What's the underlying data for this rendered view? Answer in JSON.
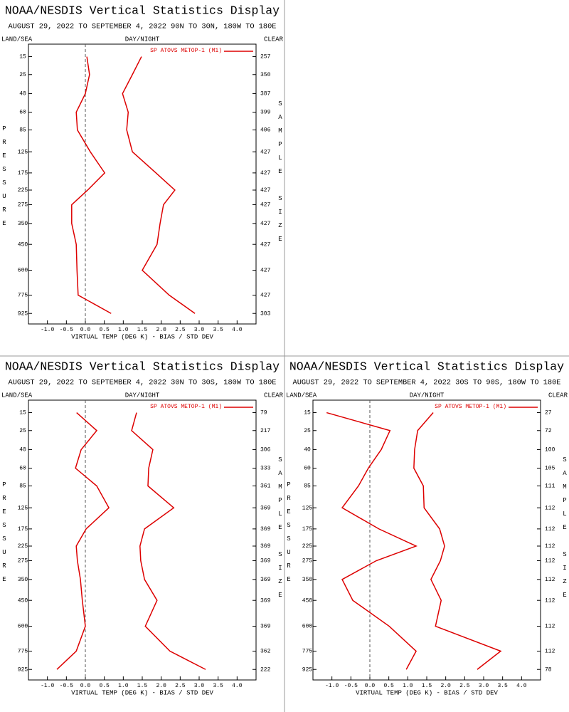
{
  "chart_data": [
    {
      "type": "line",
      "title": "NOAA/NESDIS Vertical Statistics Display",
      "subtitle": "AUGUST 29, 2022 TO SEPTEMBER 4, 2022 90N TO 30N, 180W TO 180E",
      "left_label": "LAND/SEA",
      "center_label": "DAY/NIGHT",
      "right_label": "CLEAR",
      "ylabel": "PRESSURE",
      "y2label": "SAMPLE SIZE",
      "xlabel": "VIRTUAL TEMP (DEG K) - BIAS / STD DEV",
      "y": [
        15,
        25,
        40,
        60,
        85,
        125,
        175,
        225,
        275,
        350,
        450,
        600,
        775,
        925
      ],
      "sample_sizes": [
        257,
        350,
        387,
        399,
        406,
        427,
        427,
        427,
        427,
        427,
        427,
        427,
        427,
        303
      ],
      "series": [
        {
          "name": "SP ATOVS METOP-1 (M1)",
          "color": "#dd0000",
          "values": [
            0.04,
            0.11,
            0.0,
            -0.24,
            -0.21,
            0.13,
            0.51,
            0.06,
            -0.36,
            -0.36,
            -0.24,
            -0.22,
            -0.19,
            0.68
          ]
        },
        {
          "color": "#dd0000",
          "values": [
            1.48,
            1.24,
            0.98,
            1.13,
            1.09,
            1.24,
            1.86,
            2.36,
            2.06,
            1.97,
            1.89,
            1.5,
            2.21,
            2.89
          ]
        }
      ],
      "xlim": [
        -1.5,
        4.5
      ],
      "xticks": [
        {
          "value": -1,
          "label": "-1.0"
        },
        -0.5,
        {
          "value": 0,
          "label": "0.0"
        },
        0.5,
        {
          "value": 1,
          "label": "1.0"
        },
        1.5,
        {
          "value": 2,
          "label": "2.0"
        },
        2.5,
        {
          "value": 3,
          "label": "3.0"
        },
        3.5,
        {
          "value": 4,
          "label": "4.0"
        }
      ],
      "ylim": [
        10,
        1020
      ],
      "y_scale": {
        "type": "power",
        "exponent": 0.286
      },
      "y_inverted": true,
      "zero_line": true
    },
    {
      "type": "line",
      "title": "NOAA/NESDIS Vertical Statistics Display",
      "subtitle": "AUGUST 29, 2022 TO SEPTEMBER 4, 2022 30N TO 30S, 180W TO 180E",
      "left_label": "LAND/SEA",
      "center_label": "DAY/NIGHT",
      "right_label": "CLEAR",
      "ylabel": "PRESSURE",
      "y2label": "SAMPLE SIZE",
      "xlabel": "VIRTUAL TEMP (DEG K) - BIAS / STD DEV",
      "y": [
        15,
        25,
        40,
        60,
        85,
        125,
        175,
        225,
        275,
        350,
        450,
        600,
        775,
        925
      ],
      "sample_sizes": [
        79,
        217,
        306,
        333,
        361,
        369,
        369,
        369,
        369,
        369,
        369,
        369,
        362,
        222
      ],
      "series": [
        {
          "name": "SP ATOVS METOP-1 (M1)",
          "color": "#dd0000",
          "values": [
            -0.23,
            0.3,
            -0.11,
            -0.26,
            0.3,
            0.62,
            0.02,
            -0.24,
            -0.21,
            -0.13,
            -0.08,
            0.0,
            -0.24,
            -0.75
          ]
        },
        {
          "color": "#dd0000",
          "values": [
            1.35,
            1.22,
            1.78,
            1.67,
            1.65,
            2.33,
            1.56,
            1.44,
            1.46,
            1.56,
            1.89,
            1.58,
            2.23,
            3.17
          ]
        }
      ],
      "xlim": [
        -1.5,
        4.5
      ],
      "xticks": [
        {
          "value": -1,
          "label": "-1.0"
        },
        -0.5,
        {
          "value": 0,
          "label": "0.0"
        },
        0.5,
        {
          "value": 1,
          "label": "1.0"
        },
        1.5,
        {
          "value": 2,
          "label": "2.0"
        },
        2.5,
        {
          "value": 3,
          "label": "3.0"
        },
        3.5,
        {
          "value": 4,
          "label": "4.0"
        }
      ],
      "ylim": [
        10,
        1020
      ],
      "y_scale": {
        "type": "power",
        "exponent": 0.286
      },
      "y_inverted": true,
      "zero_line": true
    },
    {
      "type": "line",
      "title": "NOAA/NESDIS Vertical Statistics Display",
      "subtitle": "AUGUST 29, 2022 TO SEPTEMBER 4, 2022 30S TO 90S, 180W TO 180E",
      "left_label": "LAND/SEA",
      "center_label": "DAY/NIGHT",
      "right_label": "CLEAR",
      "ylabel": "PRESSURE",
      "y2label": "SAMPLE SIZE",
      "xlabel": "VIRTUAL TEMP (DEG K) - BIAS / STD DEV",
      "y": [
        15,
        25,
        40,
        60,
        85,
        125,
        175,
        225,
        275,
        350,
        450,
        600,
        775,
        925
      ],
      "sample_sizes": [
        27,
        72,
        100,
        105,
        111,
        112,
        112,
        112,
        112,
        112,
        112,
        112,
        112,
        78
      ],
      "series": [
        {
          "name": "SP ATOVS METOP-1 (M1)",
          "color": "#dd0000",
          "values": [
            -1.14,
            0.53,
            0.3,
            -0.04,
            -0.3,
            -0.73,
            0.24,
            1.22,
            0.17,
            -0.73,
            -0.45,
            0.51,
            1.22,
            0.96
          ]
        },
        {
          "color": "#dd0000",
          "values": [
            1.67,
            1.26,
            1.18,
            1.16,
            1.41,
            1.43,
            1.84,
            1.97,
            1.86,
            1.61,
            1.88,
            1.73,
            3.45,
            2.83
          ]
        }
      ],
      "xlim": [
        -1.5,
        4.5
      ],
      "xticks": [
        {
          "value": -1,
          "label": "-1.0"
        },
        -0.5,
        {
          "value": 0,
          "label": "0.0"
        },
        0.5,
        {
          "value": 1,
          "label": "1.0"
        },
        1.5,
        {
          "value": 2,
          "label": "2.0"
        },
        2.5,
        {
          "value": 3,
          "label": "3.0"
        },
        3.5,
        {
          "value": 4,
          "label": "4.0"
        }
      ],
      "ylim": [
        10,
        1020
      ],
      "y_scale": {
        "type": "power",
        "exponent": 0.286
      },
      "y_inverted": true,
      "zero_line": true
    }
  ]
}
